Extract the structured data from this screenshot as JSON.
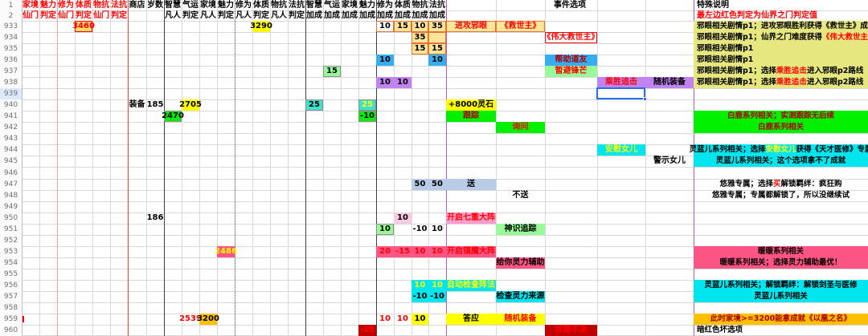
{
  "app": {
    "title": "spreadsheet-game-event-guide"
  },
  "palette": {
    "red": "#FF0000",
    "darkRed": "#B00000",
    "maroonBg": "#C00000",
    "yellow": "#FFFF00",
    "amber": "#FFD966",
    "paleYellow": "#FFE699",
    "orange": "#E97132",
    "noteYellow": "#E7E77F",
    "green": "#00F000",
    "lightGreen": "#98FB98",
    "blue": "#35ADEE",
    "purple": "#C083F0",
    "cyan": "#00E5EE",
    "turquoise": "#40E0D0",
    "hotPink": "#FF5585",
    "lightPink": "#F8CBE4",
    "pinkOption": "#FF9CCB",
    "lightBlue": "#B8CCE8",
    "gold": "#FFC000",
    "gray": "#909090",
    "black": "#000000",
    "white": "#FFFFFF",
    "gridline": "#D8D8D8",
    "selection": "#2A6FE8"
  },
  "sheet": {
    "header_row_numbers": [
      "1",
      "2"
    ],
    "event_header": "事件选项",
    "note_header": "特殊说明",
    "row2_note": "最左边红色判定为仙界之门判定值",
    "columns": [
      {
        "id": "A",
        "h1": "家境",
        "h2": "仙门",
        "hdr": "red"
      },
      {
        "id": "B",
        "h1": "魅力",
        "h2": "判定",
        "hdr": "red"
      },
      {
        "id": "C",
        "h1": "修为",
        "h2": "仙门",
        "hdr": "red"
      },
      {
        "id": "D",
        "h1": "体质",
        "h2": "判定",
        "hdr": "red"
      },
      {
        "id": "E",
        "h1": "物抗",
        "h2": "仙门",
        "hdr": "red"
      },
      {
        "id": "F",
        "h1": "法抗",
        "h2": "判定",
        "hdr": "red"
      },
      {
        "id": "G",
        "h1": "商店",
        "h2": ""
      },
      {
        "id": "H",
        "h1": "岁数",
        "h2": ""
      },
      {
        "id": "I",
        "h1": "智慧",
        "h2": "凡人"
      },
      {
        "id": "J",
        "h1": "气运",
        "h2": "判定"
      },
      {
        "id": "K",
        "h1": "家境",
        "h2": "凡人"
      },
      {
        "id": "L",
        "h1": "魅力",
        "h2": "判定"
      },
      {
        "id": "M",
        "h1": "修为",
        "h2": "凡人"
      },
      {
        "id": "N",
        "h1": "体质",
        "h2": "判定"
      },
      {
        "id": "O",
        "h1": "物抗",
        "h2": "凡人"
      },
      {
        "id": "P",
        "h1": "法抗",
        "h2": "判定"
      },
      {
        "id": "Q",
        "h1": "智慧",
        "h2": "加成"
      },
      {
        "id": "R",
        "h1": "气运",
        "h2": "加成"
      },
      {
        "id": "S",
        "h1": "家境",
        "h2": "加成"
      },
      {
        "id": "T",
        "h1": "魅力",
        "h2": "加成"
      },
      {
        "id": "U",
        "h1": "修为",
        "h2": "加成"
      },
      {
        "id": "V",
        "h1": "体质",
        "h2": "加成"
      },
      {
        "id": "W",
        "h1": "物抗",
        "h2": "加成"
      },
      {
        "id": "X",
        "h1": "法抗",
        "h2": "加成"
      }
    ],
    "rows": [
      {
        "num": "933",
        "cells": [
          {
            "c": "D",
            "t": "3460",
            "bg": "amber",
            "fg": "red",
            "bd": "red"
          },
          {
            "c": "N",
            "t": "3290",
            "bg": "yellow"
          },
          {
            "c": "U",
            "t": "10",
            "bd": "orange"
          },
          {
            "c": "V",
            "t": "15",
            "bg": "paleYellow",
            "bd": "orange"
          },
          {
            "c": "W",
            "t": "10",
            "bg": "paleYellow",
            "bd": "orange"
          },
          {
            "c": "X",
            "t": "35",
            "bg": "paleYellow",
            "bd": "orange"
          },
          {
            "c": "Y",
            "t": "进攻邪眼",
            "bg": "paleYellow",
            "fg": "red",
            "bd": "orange"
          },
          {
            "c": "Z",
            "t": "《救世主》",
            "bg": "paleYellow",
            "fg": "red",
            "bd": "orange"
          }
        ],
        "note": {
          "bg": "noteYellow",
          "align": "left",
          "parts": [
            [
              "邪眼相关剧情p1；进攻邪眼胜利获得《救世主》成就"
            ]
          ]
        }
      },
      {
        "num": "934",
        "cells": [
          {
            "c": "W",
            "t": "35",
            "bg": "paleYellow",
            "bd": "orange"
          },
          {
            "c": "X",
            "t": "",
            "bg": "paleYellow",
            "bd": "orange"
          },
          {
            "c": "AA",
            "t": "《伟大救世主》",
            "fg": "red",
            "bd": "red"
          }
        ],
        "note": {
          "bg": "noteYellow",
          "align": "left",
          "parts": [
            [
              "邪眼相关剧情p1；仙界之门难度获得"
            ],
            [
              "《伟大救世主》",
              "red"
            ]
          ]
        }
      },
      {
        "num": "935",
        "cells": [
          {
            "c": "W",
            "t": "15",
            "bg": "paleYellow",
            "bd": "orange"
          },
          {
            "c": "X",
            "t": "15",
            "bg": "paleYellow",
            "bd": "orange"
          }
        ],
        "note": {
          "bg": "noteYellow",
          "align": "left",
          "parts": [
            [
              "邪眼相关剧情p1"
            ]
          ]
        }
      },
      {
        "num": "936",
        "cells": [
          {
            "c": "U",
            "t": "10",
            "bg": "blue"
          },
          {
            "c": "X",
            "t": "10",
            "bg": "blue"
          },
          {
            "c": "AA",
            "t": "帮助道友",
            "bg": "blue",
            "fg": "darkRed"
          }
        ],
        "note": {
          "bg": "noteYellow",
          "align": "left",
          "parts": [
            [
              "邪眼相关剧情p1"
            ]
          ]
        }
      },
      {
        "num": "937",
        "cells": [
          {
            "c": "R",
            "t": "15",
            "bg": "lightGreen",
            "bd": "gray"
          },
          {
            "c": "AA",
            "t": "暂避锋芒",
            "bg": "lightGreen",
            "fg": "red"
          }
        ],
        "note": {
          "bg": "noteYellow",
          "align": "left",
          "parts": [
            [
              "邪眼相关剧情p1；选择"
            ],
            [
              "乘胜追击",
              "red"
            ],
            [
              "进入邪眼p2路线"
            ]
          ]
        }
      },
      {
        "num": "938",
        "cells": [
          {
            "c": "U",
            "t": "10",
            "bg": "purple"
          },
          {
            "c": "V",
            "t": "10",
            "bg": "purple"
          },
          {
            "c": "AB",
            "t": "乘胜追击",
            "bg": "purple",
            "fg": "red"
          },
          {
            "c": "AC",
            "t": "随机装备",
            "bg": "purple"
          }
        ],
        "note": {
          "bg": "noteYellow",
          "align": "left",
          "parts": [
            [
              "邪眼相关剧情p1；选择"
            ],
            [
              "乘胜追击",
              "red"
            ],
            [
              "进入邪眼p2路线"
            ]
          ]
        }
      },
      {
        "num": "939",
        "active": "AB",
        "cells": []
      },
      {
        "num": "940",
        "cells": [
          {
            "c": "G",
            "t": "装备"
          },
          {
            "c": "H",
            "t": "185"
          },
          {
            "c": "J",
            "t": "2705",
            "bg": "yellow"
          },
          {
            "c": "Q",
            "t": "25",
            "bg": "turquoise",
            "bd": "gray"
          },
          {
            "c": "T",
            "t": "25",
            "bg": "turquoise",
            "fg": "yellow",
            "bd": "gray"
          },
          {
            "c": "Y",
            "t": "+8000灵石",
            "bg": "yellow"
          }
        ]
      },
      {
        "num": "941",
        "cells": [
          {
            "c": "I",
            "t": "2470",
            "bg": "green",
            "bd": "gray"
          },
          {
            "c": "T",
            "t": "-10",
            "bg": "green",
            "bd": "gray"
          },
          {
            "c": "Y",
            "t": "跟踪",
            "bg": "green",
            "fg": "darkRed"
          }
        ],
        "note": {
          "bg": "green",
          "fg": "darkRed",
          "parts": [
            [
              "白鹿系列相关；实测跟踪无后续"
            ]
          ]
        }
      },
      {
        "num": "942",
        "cells": [
          {
            "c": "Z",
            "t": "询问",
            "bg": "green",
            "fg": "red"
          }
        ],
        "note": {
          "bg": "green",
          "fg": "darkRed",
          "parts": [
            [
              "白鹿系列相关"
            ]
          ]
        }
      },
      {
        "num": "943",
        "cells": []
      },
      {
        "num": "944",
        "cells": [
          {
            "c": "AB",
            "t": "安慰女儿",
            "bg": "cyan",
            "fg": "yellow"
          }
        ],
        "note": {
          "bg": "cyan",
          "parts": [
            [
              "灵蓝儿系列相关；选择"
            ],
            [
              "安慰女儿",
              "yellow"
            ],
            [
              "获得《天才医修》专属"
            ]
          ]
        }
      },
      {
        "num": "945",
        "cells": [
          {
            "c": "AC",
            "t": "警示女儿"
          }
        ],
        "note": {
          "bg": "cyan",
          "parts": [
            [
              "灵蓝儿系列相关；这个选项拿不了成就"
            ]
          ]
        }
      },
      {
        "num": "946",
        "cells": []
      },
      {
        "num": "947",
        "cells": [
          {
            "c": "W",
            "t": "50",
            "bg": "lightBlue"
          },
          {
            "c": "X",
            "t": "50",
            "bg": "lightBlue"
          },
          {
            "c": "Y",
            "t": "送",
            "bg": "lightBlue"
          }
        ],
        "note": {
          "parts": [
            [
              "悠雅专属；选择"
            ],
            [
              "买",
              "red"
            ],
            [
              "解锁羁绊：疯狂购"
            ]
          ]
        }
      },
      {
        "num": "948",
        "cells": [
          {
            "c": "Z",
            "t": "不送"
          }
        ],
        "note": {
          "parts": [
            [
              "悠雅专属；专属都解锁了，所以没继续试"
            ]
          ]
        }
      },
      {
        "num": "949",
        "cells": []
      },
      {
        "num": "950",
        "cells": [
          {
            "c": "H",
            "t": "186"
          },
          {
            "c": "V",
            "t": "10",
            "bg": "lightPink"
          },
          {
            "c": "Y",
            "t": "开启七重大阵",
            "bg": "pinkOption",
            "fg": "red"
          }
        ]
      },
      {
        "num": "951",
        "cells": [
          {
            "c": "U",
            "t": "10",
            "bg": "lightGreen",
            "bd": "gray"
          },
          {
            "c": "W",
            "t": "-10"
          },
          {
            "c": "X",
            "t": "10"
          },
          {
            "c": "Z",
            "t": "神识追踪",
            "bg": "lightGreen"
          }
        ]
      },
      {
        "num": "952",
        "cells": []
      },
      {
        "num": "953",
        "cells": [
          {
            "c": "L",
            "t": "2486",
            "bg": "hotPink",
            "fg": "yellow"
          },
          {
            "c": "U",
            "t": "20",
            "bg": "hotPink",
            "fg": "red"
          },
          {
            "c": "V",
            "t": "-15",
            "bg": "hotPink",
            "fg": "red"
          },
          {
            "c": "W",
            "t": "10",
            "bg": "hotPink",
            "fg": "red"
          },
          {
            "c": "X",
            "t": "10",
            "bg": "hotPink",
            "fg": "red"
          },
          {
            "c": "Y",
            "t": "开启镇魔大阵",
            "bg": "hotPink",
            "fg": "red"
          }
        ],
        "note": {
          "bg": "hotPink",
          "parts": [
            [
              "暖暖系列相关"
            ]
          ]
        }
      },
      {
        "num": "954",
        "cells": [
          {
            "c": "Z",
            "t": "给你灵力辅助",
            "bg": "hotPink"
          }
        ],
        "note": {
          "bg": "hotPink",
          "parts": [
            [
              "暖暖系列相关；选择灵力辅助最优！"
            ]
          ]
        }
      },
      {
        "num": "955",
        "cells": []
      },
      {
        "num": "956",
        "cells": [
          {
            "c": "W",
            "t": "10",
            "bg": "cyan",
            "fg": "yellow"
          },
          {
            "c": "X",
            "t": "10",
            "bg": "cyan",
            "fg": "yellow"
          },
          {
            "c": "Y",
            "t": "自动检查阵法",
            "bg": "cyan",
            "fg": "yellow"
          }
        ],
        "note": {
          "bg": "cyan",
          "parts": [
            [
              "灵蓝儿系列相关；解锁羁绊：解锁剑圣与医修"
            ]
          ]
        }
      },
      {
        "num": "957",
        "cells": [
          {
            "c": "W",
            "t": "-10",
            "bg": "cyan"
          },
          {
            "c": "X",
            "t": "-10",
            "bg": "cyan"
          },
          {
            "c": "Z",
            "t": "检查灵力来源",
            "bg": "cyan"
          }
        ],
        "note": {
          "bg": "cyan",
          "parts": [
            [
              "灵蓝儿系列相关"
            ]
          ]
        }
      },
      {
        "num": "958",
        "cells": []
      },
      {
        "num": "959",
        "mark": true,
        "cells": [
          {
            "c": "J",
            "t": "2539",
            "fg": "red"
          },
          {
            "c": "K",
            "t": "3200",
            "bg": "gold"
          },
          {
            "c": "U",
            "t": "10",
            "fg": "red"
          },
          {
            "c": "V",
            "t": "10",
            "fg": "red"
          },
          {
            "c": "W",
            "t": "10",
            "bg": "yellow"
          },
          {
            "c": "Y",
            "t": "答应",
            "bg": "yellow"
          },
          {
            "c": "Z",
            "t": "随机装备",
            "bg": "yellow",
            "fg": "red"
          }
        ],
        "note": {
          "bg": "gold",
          "fg": "darkRed",
          "parts": [
            [
              "此时家境>=3200能拿成就《以凰之名》"
            ]
          ]
        }
      },
      {
        "num": "960",
        "cells": [
          {
            "c": "T",
            "t": "-15",
            "bg": "maroonBg",
            "fg": "red"
          },
          {
            "c": "AA",
            "t": "犹豫不决",
            "bg": "maroonBg",
            "fg": "red"
          }
        ],
        "note": {
          "align": "left",
          "parts": [
            [
              "暗红色坏选项"
            ]
          ]
        }
      }
    ]
  }
}
